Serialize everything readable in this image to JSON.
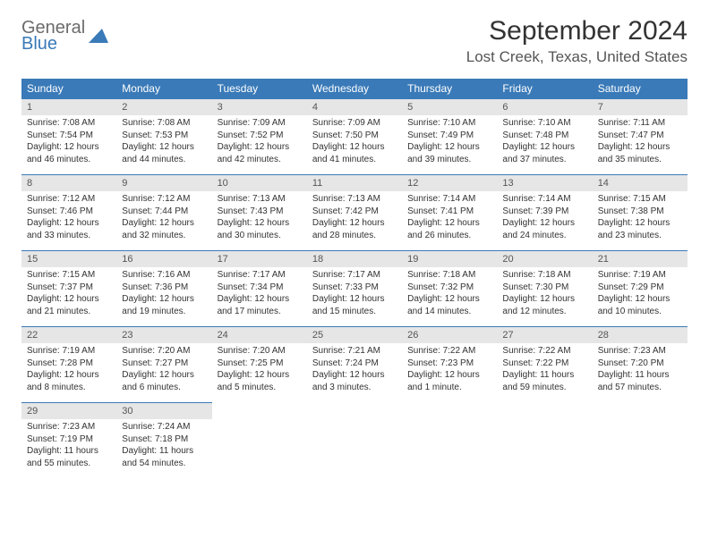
{
  "logo": {
    "line1": "General",
    "line2": "Blue"
  },
  "title": "September 2024",
  "location": "Lost Creek, Texas, United States",
  "colors": {
    "header_bg": "#3a7ab8",
    "header_text": "#ffffff",
    "daynum_bg": "#e6e6e6",
    "border": "#3a7ab8",
    "logo_gray": "#6b6b6b",
    "logo_blue": "#3a7ab8"
  },
  "day_headers": [
    "Sunday",
    "Monday",
    "Tuesday",
    "Wednesday",
    "Thursday",
    "Friday",
    "Saturday"
  ],
  "weeks": [
    [
      {
        "n": "1",
        "sr": "Sunrise: 7:08 AM",
        "ss": "Sunset: 7:54 PM",
        "dl": "Daylight: 12 hours and 46 minutes."
      },
      {
        "n": "2",
        "sr": "Sunrise: 7:08 AM",
        "ss": "Sunset: 7:53 PM",
        "dl": "Daylight: 12 hours and 44 minutes."
      },
      {
        "n": "3",
        "sr": "Sunrise: 7:09 AM",
        "ss": "Sunset: 7:52 PM",
        "dl": "Daylight: 12 hours and 42 minutes."
      },
      {
        "n": "4",
        "sr": "Sunrise: 7:09 AM",
        "ss": "Sunset: 7:50 PM",
        "dl": "Daylight: 12 hours and 41 minutes."
      },
      {
        "n": "5",
        "sr": "Sunrise: 7:10 AM",
        "ss": "Sunset: 7:49 PM",
        "dl": "Daylight: 12 hours and 39 minutes."
      },
      {
        "n": "6",
        "sr": "Sunrise: 7:10 AM",
        "ss": "Sunset: 7:48 PM",
        "dl": "Daylight: 12 hours and 37 minutes."
      },
      {
        "n": "7",
        "sr": "Sunrise: 7:11 AM",
        "ss": "Sunset: 7:47 PM",
        "dl": "Daylight: 12 hours and 35 minutes."
      }
    ],
    [
      {
        "n": "8",
        "sr": "Sunrise: 7:12 AM",
        "ss": "Sunset: 7:46 PM",
        "dl": "Daylight: 12 hours and 33 minutes."
      },
      {
        "n": "9",
        "sr": "Sunrise: 7:12 AM",
        "ss": "Sunset: 7:44 PM",
        "dl": "Daylight: 12 hours and 32 minutes."
      },
      {
        "n": "10",
        "sr": "Sunrise: 7:13 AM",
        "ss": "Sunset: 7:43 PM",
        "dl": "Daylight: 12 hours and 30 minutes."
      },
      {
        "n": "11",
        "sr": "Sunrise: 7:13 AM",
        "ss": "Sunset: 7:42 PM",
        "dl": "Daylight: 12 hours and 28 minutes."
      },
      {
        "n": "12",
        "sr": "Sunrise: 7:14 AM",
        "ss": "Sunset: 7:41 PM",
        "dl": "Daylight: 12 hours and 26 minutes."
      },
      {
        "n": "13",
        "sr": "Sunrise: 7:14 AM",
        "ss": "Sunset: 7:39 PM",
        "dl": "Daylight: 12 hours and 24 minutes."
      },
      {
        "n": "14",
        "sr": "Sunrise: 7:15 AM",
        "ss": "Sunset: 7:38 PM",
        "dl": "Daylight: 12 hours and 23 minutes."
      }
    ],
    [
      {
        "n": "15",
        "sr": "Sunrise: 7:15 AM",
        "ss": "Sunset: 7:37 PM",
        "dl": "Daylight: 12 hours and 21 minutes."
      },
      {
        "n": "16",
        "sr": "Sunrise: 7:16 AM",
        "ss": "Sunset: 7:36 PM",
        "dl": "Daylight: 12 hours and 19 minutes."
      },
      {
        "n": "17",
        "sr": "Sunrise: 7:17 AM",
        "ss": "Sunset: 7:34 PM",
        "dl": "Daylight: 12 hours and 17 minutes."
      },
      {
        "n": "18",
        "sr": "Sunrise: 7:17 AM",
        "ss": "Sunset: 7:33 PM",
        "dl": "Daylight: 12 hours and 15 minutes."
      },
      {
        "n": "19",
        "sr": "Sunrise: 7:18 AM",
        "ss": "Sunset: 7:32 PM",
        "dl": "Daylight: 12 hours and 14 minutes."
      },
      {
        "n": "20",
        "sr": "Sunrise: 7:18 AM",
        "ss": "Sunset: 7:30 PM",
        "dl": "Daylight: 12 hours and 12 minutes."
      },
      {
        "n": "21",
        "sr": "Sunrise: 7:19 AM",
        "ss": "Sunset: 7:29 PM",
        "dl": "Daylight: 12 hours and 10 minutes."
      }
    ],
    [
      {
        "n": "22",
        "sr": "Sunrise: 7:19 AM",
        "ss": "Sunset: 7:28 PM",
        "dl": "Daylight: 12 hours and 8 minutes."
      },
      {
        "n": "23",
        "sr": "Sunrise: 7:20 AM",
        "ss": "Sunset: 7:27 PM",
        "dl": "Daylight: 12 hours and 6 minutes."
      },
      {
        "n": "24",
        "sr": "Sunrise: 7:20 AM",
        "ss": "Sunset: 7:25 PM",
        "dl": "Daylight: 12 hours and 5 minutes."
      },
      {
        "n": "25",
        "sr": "Sunrise: 7:21 AM",
        "ss": "Sunset: 7:24 PM",
        "dl": "Daylight: 12 hours and 3 minutes."
      },
      {
        "n": "26",
        "sr": "Sunrise: 7:22 AM",
        "ss": "Sunset: 7:23 PM",
        "dl": "Daylight: 12 hours and 1 minute."
      },
      {
        "n": "27",
        "sr": "Sunrise: 7:22 AM",
        "ss": "Sunset: 7:22 PM",
        "dl": "Daylight: 11 hours and 59 minutes."
      },
      {
        "n": "28",
        "sr": "Sunrise: 7:23 AM",
        "ss": "Sunset: 7:20 PM",
        "dl": "Daylight: 11 hours and 57 minutes."
      }
    ],
    [
      {
        "n": "29",
        "sr": "Sunrise: 7:23 AM",
        "ss": "Sunset: 7:19 PM",
        "dl": "Daylight: 11 hours and 55 minutes."
      },
      {
        "n": "30",
        "sr": "Sunrise: 7:24 AM",
        "ss": "Sunset: 7:18 PM",
        "dl": "Daylight: 11 hours and 54 minutes."
      },
      null,
      null,
      null,
      null,
      null
    ]
  ]
}
